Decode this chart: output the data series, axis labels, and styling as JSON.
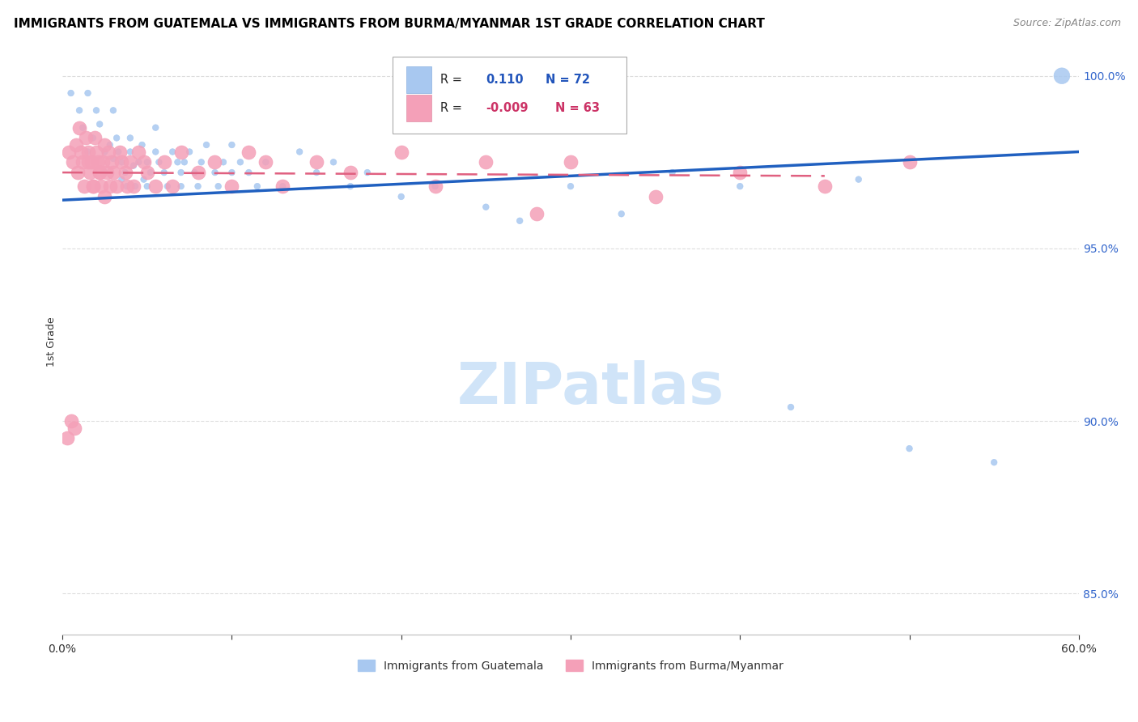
{
  "title": "IMMIGRANTS FROM GUATEMALA VS IMMIGRANTS FROM BURMA/MYANMAR 1ST GRADE CORRELATION CHART",
  "source": "Source: ZipAtlas.com",
  "ylabel": "1st Grade",
  "xlim": [
    0.0,
    0.6
  ],
  "ylim": [
    0.838,
    1.008
  ],
  "xticks": [
    0.0,
    0.1,
    0.2,
    0.3,
    0.4,
    0.5,
    0.6
  ],
  "xticklabels": [
    "0.0%",
    "",
    "",
    "",
    "",
    "",
    "60.0%"
  ],
  "yticks_right": [
    1.0,
    0.95,
    0.9,
    0.85
  ],
  "ytick_right_labels": [
    "100.0%",
    "95.0%",
    "90.0%",
    "85.0%"
  ],
  "blue_color": "#A8C8F0",
  "pink_color": "#F4A0B8",
  "blue_line_color": "#2060C0",
  "pink_line_color": "#E06080",
  "watermark_text": "ZIPatlas",
  "watermark_color": "#D0E4F8",
  "title_fontsize": 11,
  "source_fontsize": 9,
  "legend_label_blue": "Immigrants from Guatemala",
  "legend_label_pink": "Immigrants from Burma/Myanmar",
  "blue_scatter_x": [
    0.005,
    0.01,
    0.012,
    0.015,
    0.015,
    0.018,
    0.02,
    0.022,
    0.025,
    0.025,
    0.028,
    0.03,
    0.03,
    0.032,
    0.033,
    0.035,
    0.035,
    0.037,
    0.038,
    0.04,
    0.04,
    0.042,
    0.043,
    0.045,
    0.047,
    0.048,
    0.05,
    0.05,
    0.052,
    0.055,
    0.055,
    0.057,
    0.06,
    0.062,
    0.065,
    0.068,
    0.07,
    0.07,
    0.072,
    0.075,
    0.078,
    0.08,
    0.082,
    0.085,
    0.09,
    0.092,
    0.095,
    0.1,
    0.1,
    0.105,
    0.11,
    0.115,
    0.12,
    0.13,
    0.14,
    0.15,
    0.16,
    0.17,
    0.18,
    0.2,
    0.22,
    0.25,
    0.27,
    0.3,
    0.33,
    0.36,
    0.4,
    0.43,
    0.47,
    0.5,
    0.55,
    0.59
  ],
  "blue_scatter_y": [
    0.995,
    0.99,
    0.985,
    0.995,
    0.978,
    0.982,
    0.99,
    0.986,
    0.978,
    0.972,
    0.98,
    0.99,
    0.976,
    0.982,
    0.978,
    0.975,
    0.97,
    0.972,
    0.968,
    0.982,
    0.978,
    0.974,
    0.968,
    0.975,
    0.98,
    0.97,
    0.968,
    0.975,
    0.972,
    0.978,
    0.985,
    0.975,
    0.972,
    0.968,
    0.978,
    0.975,
    0.972,
    0.968,
    0.975,
    0.978,
    0.972,
    0.968,
    0.975,
    0.98,
    0.972,
    0.968,
    0.975,
    0.972,
    0.98,
    0.975,
    0.972,
    0.968,
    0.975,
    0.968,
    0.978,
    0.972,
    0.975,
    0.968,
    0.972,
    0.965,
    0.968,
    0.962,
    0.958,
    0.968,
    0.96,
    0.972,
    0.968,
    0.904,
    0.97,
    0.892,
    0.888,
    1.0
  ],
  "blue_scatter_sizes": [
    30,
    30,
    30,
    30,
    30,
    30,
    30,
    30,
    30,
    30,
    30,
    30,
    30,
    30,
    30,
    30,
    30,
    30,
    30,
    30,
    30,
    30,
    30,
    30,
    30,
    30,
    30,
    30,
    30,
    30,
    30,
    30,
    30,
    30,
    30,
    30,
    30,
    30,
    30,
    30,
    30,
    30,
    30,
    30,
    30,
    30,
    30,
    30,
    30,
    30,
    30,
    30,
    30,
    30,
    30,
    30,
    30,
    30,
    30,
    30,
    30,
    30,
    30,
    30,
    30,
    30,
    30,
    30,
    30,
    30,
    30,
    200
  ],
  "pink_scatter_x": [
    0.004,
    0.006,
    0.008,
    0.009,
    0.01,
    0.011,
    0.012,
    0.013,
    0.014,
    0.015,
    0.016,
    0.017,
    0.018,
    0.019,
    0.02,
    0.021,
    0.022,
    0.023,
    0.024,
    0.025,
    0.026,
    0.027,
    0.028,
    0.029,
    0.03,
    0.032,
    0.034,
    0.035,
    0.037,
    0.038,
    0.04,
    0.042,
    0.045,
    0.048,
    0.05,
    0.055,
    0.06,
    0.065,
    0.07,
    0.08,
    0.09,
    0.1,
    0.11,
    0.12,
    0.13,
    0.15,
    0.17,
    0.2,
    0.22,
    0.25,
    0.28,
    0.3,
    0.35,
    0.4,
    0.45,
    0.5,
    0.003,
    0.005,
    0.007,
    0.015,
    0.018,
    0.022,
    0.025
  ],
  "pink_scatter_y": [
    0.978,
    0.975,
    0.98,
    0.972,
    0.985,
    0.978,
    0.975,
    0.968,
    0.982,
    0.978,
    0.972,
    0.975,
    0.968,
    0.982,
    0.978,
    0.975,
    0.972,
    0.968,
    0.975,
    0.98,
    0.972,
    0.978,
    0.968,
    0.975,
    0.972,
    0.968,
    0.978,
    0.975,
    0.972,
    0.968,
    0.975,
    0.968,
    0.978,
    0.975,
    0.972,
    0.968,
    0.975,
    0.968,
    0.978,
    0.972,
    0.975,
    0.968,
    0.978,
    0.975,
    0.968,
    0.975,
    0.972,
    0.978,
    0.968,
    0.975,
    0.96,
    0.975,
    0.965,
    0.972,
    0.968,
    0.975,
    0.895,
    0.9,
    0.898,
    0.975,
    0.968,
    0.972,
    0.965
  ],
  "blue_trendline_x": [
    0.0,
    0.6
  ],
  "blue_trendline_y": [
    0.964,
    0.978
  ],
  "pink_trendline_x": [
    0.0,
    0.45
  ],
  "pink_trendline_y": [
    0.972,
    0.971
  ],
  "grid_color": "#DDDDDD",
  "legend_r_blue": "R =",
  "legend_rv_blue": "0.110",
  "legend_n_blue": "N = 72",
  "legend_r_pink": "R =",
  "legend_rv_pink": "-0.009",
  "legend_n_pink": "N = 63"
}
